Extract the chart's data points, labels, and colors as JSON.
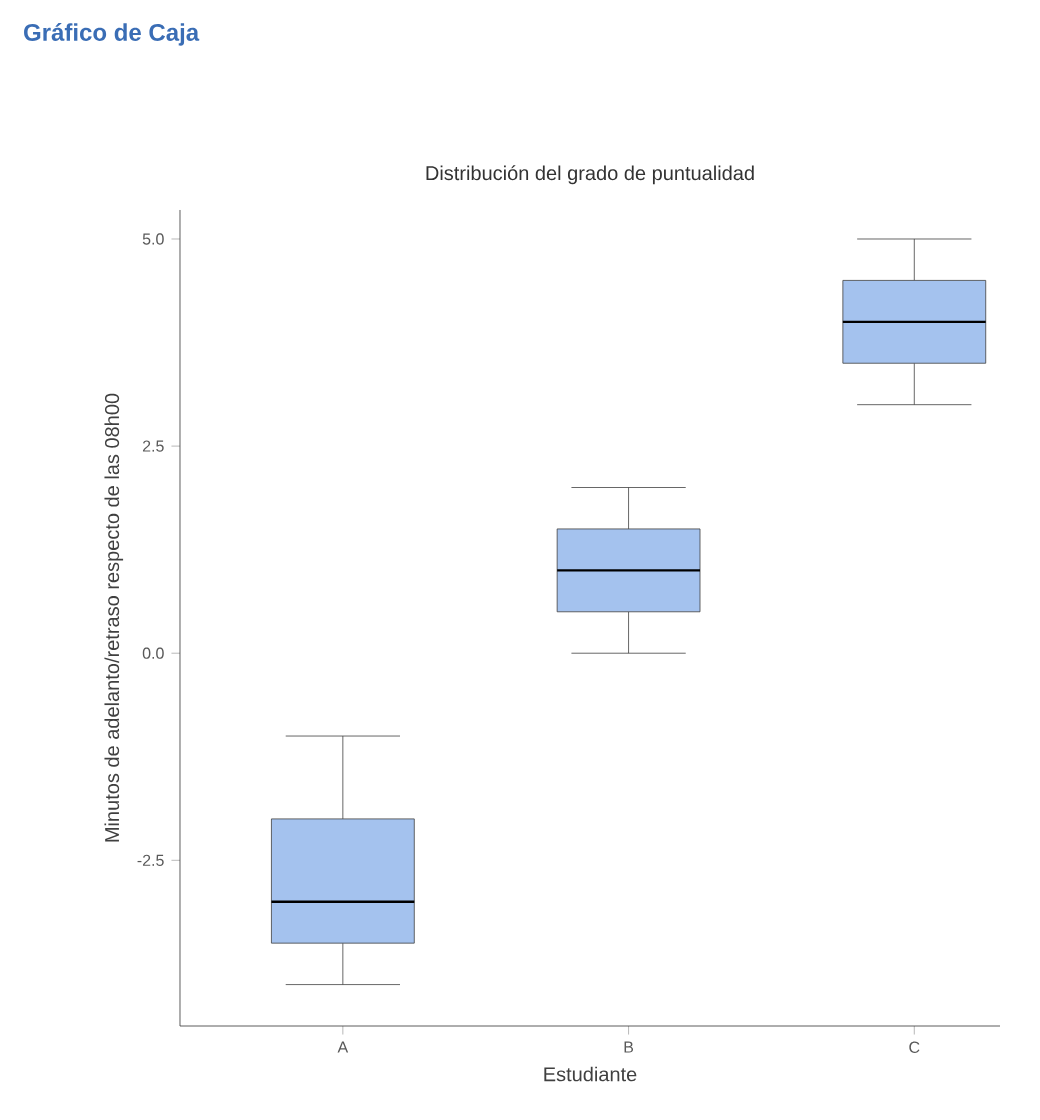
{
  "chart_data": {
    "type": "box",
    "title": "Gráfico de Caja",
    "subtitle": "Distribución del grado de puntualidad",
    "xlabel": "Estudiante",
    "ylabel": "Minutos de adelanto/retraso respecto de las 08h00",
    "categories": [
      "A",
      "B",
      "C"
    ],
    "color": "#a4c2ee",
    "boxes": [
      {
        "low": -4,
        "q1": -3.5,
        "median": -3,
        "q3": -2,
        "high": -1
      },
      {
        "low": 0,
        "q1": 0.5,
        "median": 1,
        "q3": 1.5,
        "high": 2
      },
      {
        "low": 3,
        "q1": 3.5,
        "median": 4,
        "q3": 4.5,
        "high": 5
      }
    ],
    "ylim": [
      -4.5,
      5.35
    ],
    "yticks": [
      -2.5,
      {
        "value": 0,
        "label": "0.0"
      },
      2.5,
      {
        "value": 5,
        "label": "5.0"
      }
    ]
  }
}
